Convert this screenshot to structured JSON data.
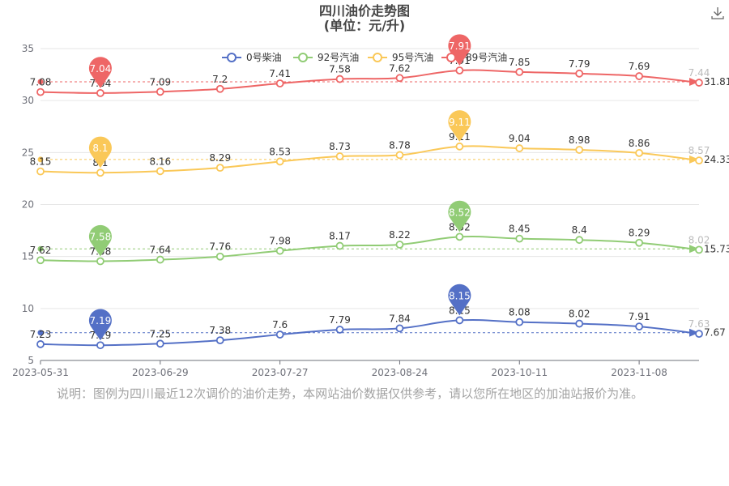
{
  "title_line1": "四川油价走势图",
  "title_line2": "(单位：元/升)",
  "note": "说明：图例为四川最近12次调价的油价走势，本网站油价数据仅供参考，请以您所在地区的加油站报价为准。",
  "download_icon": "download-icon",
  "chart_data": {
    "type": "line",
    "ylim": [
      5,
      35
    ],
    "yticks": [
      5,
      10,
      15,
      20,
      25,
      30,
      35
    ],
    "xtick_labels": [
      "2023-05-31",
      "2023-06-29",
      "2023-07-27",
      "2023-08-24",
      "2023-10-11",
      "2023-11-08"
    ],
    "grid": true,
    "legend": "top",
    "series": [
      {
        "name": "0号柴油",
        "color": "#5470c6",
        "values": [
          7.23,
          7.19,
          7.25,
          7.38,
          7.6,
          7.79,
          7.84,
          8.15,
          8.08,
          8.02,
          7.91,
          7.63
        ],
        "end_label": "7.67",
        "avg": 7.67,
        "min_label": "7.19",
        "max_label": "8.15",
        "min_index": 1,
        "max_index": 7
      },
      {
        "name": "92号汽油",
        "color": "#91cc75",
        "values": [
          7.62,
          7.58,
          7.64,
          7.76,
          7.98,
          8.17,
          8.22,
          8.52,
          8.45,
          8.4,
          8.29,
          8.02
        ],
        "end_label": "15.73",
        "avg": 15.73,
        "min_label": "7.58",
        "max_label": "8.52",
        "min_index": 1,
        "max_index": 7
      },
      {
        "name": "95号汽油",
        "color": "#fac858",
        "values": [
          8.15,
          8.1,
          8.16,
          8.29,
          8.53,
          8.73,
          8.78,
          9.11,
          9.04,
          8.98,
          8.86,
          8.57
        ],
        "end_label": "24.33",
        "avg": 24.33,
        "min_label": "8.1",
        "max_label": "9.11",
        "min_index": 1,
        "max_index": 7
      },
      {
        "name": "89号汽油",
        "color": "#ee6666",
        "values": [
          7.08,
          7.04,
          7.09,
          7.2,
          7.41,
          7.58,
          7.62,
          7.91,
          7.85,
          7.79,
          7.69,
          7.44
        ],
        "end_label": "31.81",
        "avg": 31.81,
        "min_label": "7.04",
        "max_label": "7.91",
        "min_index": 1,
        "max_index": 7
      }
    ]
  }
}
